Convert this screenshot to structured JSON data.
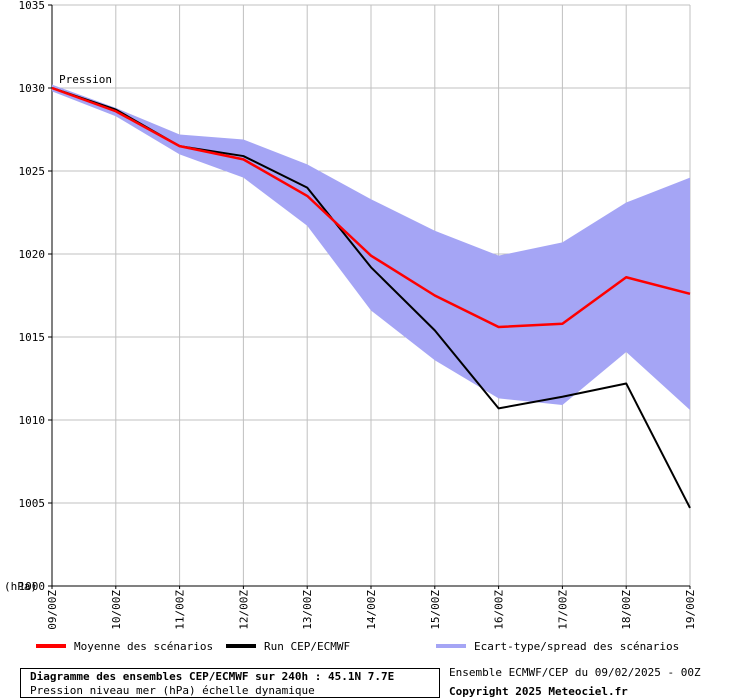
{
  "chart_data": {
    "type": "line",
    "ylabel": "(hPa)",
    "annotation": "Pression",
    "ylim": [
      1000,
      1035
    ],
    "yticks": [
      1000,
      1005,
      1010,
      1015,
      1020,
      1025,
      1030,
      1035
    ],
    "categories": [
      "09/00Z",
      "10/00Z",
      "11/00Z",
      "12/00Z",
      "13/00Z",
      "14/00Z",
      "15/00Z",
      "16/00Z",
      "17/00Z",
      "18/00Z",
      "19/00Z"
    ],
    "series": [
      {
        "name": "Moyenne des scénarios",
        "color": "#ff0000",
        "values": [
          1030.0,
          1028.6,
          1026.5,
          1025.7,
          1023.5,
          1019.9,
          1017.5,
          1015.6,
          1015.8,
          1018.6,
          1017.6
        ]
      },
      {
        "name": "Run CEP/ECMWF",
        "color": "#000000",
        "values": [
          1030.0,
          1028.7,
          1026.5,
          1025.9,
          1024.0,
          1019.2,
          1015.4,
          1010.7,
          1011.4,
          1012.2,
          1004.7
        ]
      }
    ],
    "band": {
      "name": "Ecart-type/spread des scénarios",
      "color": "#a5a5f5",
      "upper": [
        1030.2,
        1028.8,
        1027.2,
        1026.9,
        1025.4,
        1023.3,
        1021.4,
        1019.9,
        1020.7,
        1023.1,
        1024.6
      ],
      "lower": [
        1029.8,
        1028.3,
        1026.0,
        1024.6,
        1021.7,
        1016.6,
        1013.6,
        1011.3,
        1010.9,
        1014.1,
        1010.6
      ]
    }
  },
  "footer": {
    "title": "Diagramme des ensembles CEP/ECMWF sur 240h : 45.1N 7.7E",
    "subtitle": "Pression niveau mer (hPa) échelle dynamique",
    "run_info": "Ensemble ECMWF/CEP du 09/02/2025 - 00Z",
    "copyright": "Copyright 2025 Meteociel.fr"
  }
}
